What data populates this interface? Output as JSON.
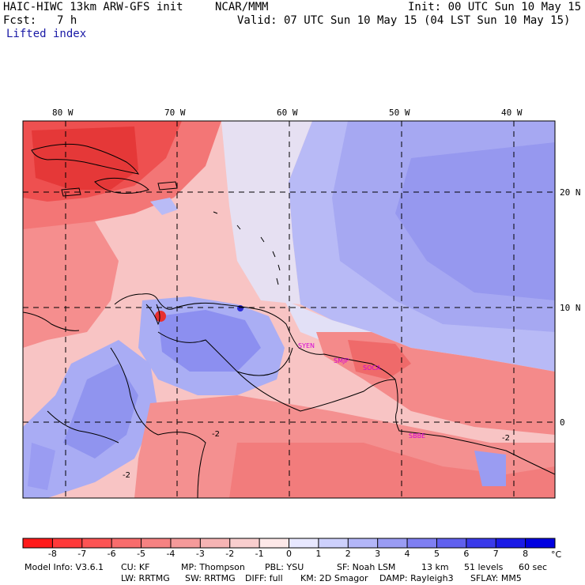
{
  "header": {
    "model_title": "HAIC-HIWC 13km ARW-GFS init",
    "org": "NCAR/MMM",
    "init_time": "Init: 00 UTC Sun 10 May 15",
    "fcst_label": "Fcst:",
    "fcst_value": "7 h",
    "valid_time": "Valid: 07 UTC Sun 10 May 15 (04 LST Sun 10 May 15)",
    "field_name": "Lifted index"
  },
  "map": {
    "lon_labels": [
      "80 W",
      "70 W",
      "60 W",
      "50 W",
      "40 W"
    ],
    "lat_labels": [
      "20 N",
      "10 N",
      "0"
    ],
    "station_labels": [
      "SYEN",
      "SMJP",
      "SOCA",
      "SBBE"
    ],
    "contour_labels": [
      "-2",
      "-2",
      "-2"
    ],
    "station_color": "#d400d4"
  },
  "colorbar": {
    "ticks": [
      "-8",
      "-7",
      "-6",
      "-5",
      "-4",
      "-3",
      "-2",
      "-1",
      "0",
      "1",
      "2",
      "3",
      "4",
      "5",
      "6",
      "7",
      "8"
    ],
    "unit": "°C",
    "colors": [
      "#ff1a1a",
      "#ff3a3a",
      "#fc5454",
      "#f86c6c",
      "#f68282",
      "#f59a9a",
      "#f6b4b4",
      "#f9cece",
      "#fde8e8",
      "#e8e8ff",
      "#cdd0fc",
      "#b3b6f8",
      "#9a9cf4",
      "#7f7ff2",
      "#6060ee",
      "#3a3aea",
      "#1a1ae6",
      "#0000e0"
    ]
  },
  "model_info": {
    "line1": [
      "Model Info: V3.6.1",
      "CU: KF",
      "MP: Thompson",
      "PBL: YSU",
      "SF: Noah LSM",
      "13 km",
      "51 levels",
      "60 sec"
    ],
    "line2": [
      "LW: RRTMG",
      "SW: RRTMG",
      "DIFF: full",
      "KM: 2D Smagor",
      "DAMP: Rayleigh3",
      "SFLAY: MM5"
    ]
  }
}
